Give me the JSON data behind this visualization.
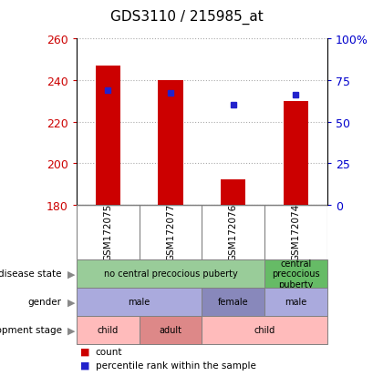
{
  "title": "GDS3110 / 215985_at",
  "samples": [
    "GSM172075",
    "GSM172077",
    "GSM172076",
    "GSM172074"
  ],
  "bar_bottom": 180,
  "bar_tops": [
    247,
    240,
    192,
    230
  ],
  "percentile_values": [
    235,
    234,
    228,
    233
  ],
  "ylim": [
    180,
    260
  ],
  "ylim_right": [
    0,
    100
  ],
  "yticks_left": [
    180,
    200,
    220,
    240,
    260
  ],
  "yticks_right": [
    0,
    25,
    50,
    75,
    100
  ],
  "bar_color": "#cc0000",
  "dot_color": "#2222cc",
  "disease_state": [
    {
      "label": "no central precocious puberty",
      "span": [
        0,
        3
      ],
      "color": "#99cc99"
    },
    {
      "label": "central\nprecocious\npuberty",
      "span": [
        3,
        4
      ],
      "color": "#66bb66"
    }
  ],
  "gender": [
    {
      "label": "male",
      "span": [
        0,
        2
      ],
      "color": "#aaaadd"
    },
    {
      "label": "female",
      "span": [
        2,
        3
      ],
      "color": "#8888bb"
    },
    {
      "label": "male",
      "span": [
        3,
        4
      ],
      "color": "#aaaadd"
    }
  ],
  "dev_stage": [
    {
      "label": "child",
      "span": [
        0,
        1
      ],
      "color": "#ffbbbb"
    },
    {
      "label": "adult",
      "span": [
        1,
        2
      ],
      "color": "#dd8888"
    },
    {
      "label": "child",
      "span": [
        2,
        4
      ],
      "color": "#ffbbbb"
    }
  ],
  "row_labels": [
    "disease state",
    "gender",
    "development stage"
  ],
  "legend_count_label": "count",
  "legend_pct_label": "percentile rank within the sample",
  "background_color": "#ffffff",
  "grid_color": "#aaaaaa",
  "tick_label_color_left": "#cc0000",
  "tick_label_color_right": "#0000cc",
  "xlab_bg": "#cccccc"
}
